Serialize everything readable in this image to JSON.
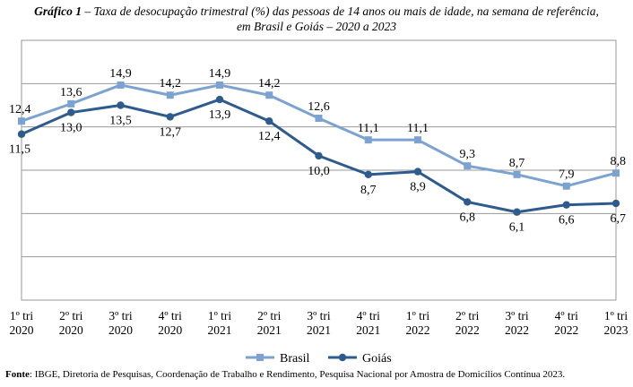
{
  "title": {
    "lead": "Gráfico 1",
    "line1": " – Taxa de desocupação trimestral (%) das pessoas de 14 anos ou mais de idade, na semana de referência,",
    "line2": "em Brasil e Goiás – 2020 a 2023"
  },
  "source": {
    "label": "Fonte",
    "text": ": IBGE, Diretoria de Pesquisas, Coordenação de Trabalho e Rendimento, Pesquisa Nacional por Amostra de Domicílios Contínua 2023."
  },
  "chart_data": {
    "type": "line",
    "categories": [
      [
        "1º tri",
        "2020"
      ],
      [
        "2º tri",
        "2020"
      ],
      [
        "3º tri",
        "2020"
      ],
      [
        "4º tri",
        "2020"
      ],
      [
        "1º tri",
        "2021"
      ],
      [
        "2º tri",
        "2021"
      ],
      [
        "3º tri",
        "2021"
      ],
      [
        "4º tri",
        "2021"
      ],
      [
        "1º tri",
        "2022"
      ],
      [
        "2º tri",
        "2022"
      ],
      [
        "3º tri",
        "2022"
      ],
      [
        "4º tri",
        "2022"
      ],
      [
        "1º tri",
        "2023"
      ]
    ],
    "ylim": [
      0,
      18
    ],
    "grid_step": 3,
    "series": [
      {
        "name": "Brasil",
        "color": "#7BA2D0",
        "marker": "square",
        "values": [
          12.4,
          13.6,
          14.9,
          14.2,
          14.9,
          14.2,
          12.6,
          11.1,
          11.1,
          9.3,
          8.7,
          7.9,
          8.8
        ],
        "labels": [
          "12,4",
          "13,6",
          "14,9",
          "14,2",
          "14,9",
          "14,2",
          "12,6",
          "11,1",
          "11,1",
          "9,3",
          "8,7",
          "7,9",
          "8,8"
        ]
      },
      {
        "name": "Goiás",
        "color": "#2E5B8E",
        "marker": "circle",
        "values": [
          11.5,
          13.0,
          13.5,
          12.7,
          13.9,
          12.4,
          10.0,
          8.7,
          8.9,
          6.8,
          6.1,
          6.6,
          6.7
        ],
        "labels": [
          "11,5",
          "13,0",
          "13,5",
          "12,7",
          "13,9",
          "12,4",
          "10,0",
          "8,7",
          "8,9",
          "6,8",
          "6,1",
          "6,6",
          "6,7"
        ]
      }
    ],
    "legend_position": "bottom-center"
  }
}
